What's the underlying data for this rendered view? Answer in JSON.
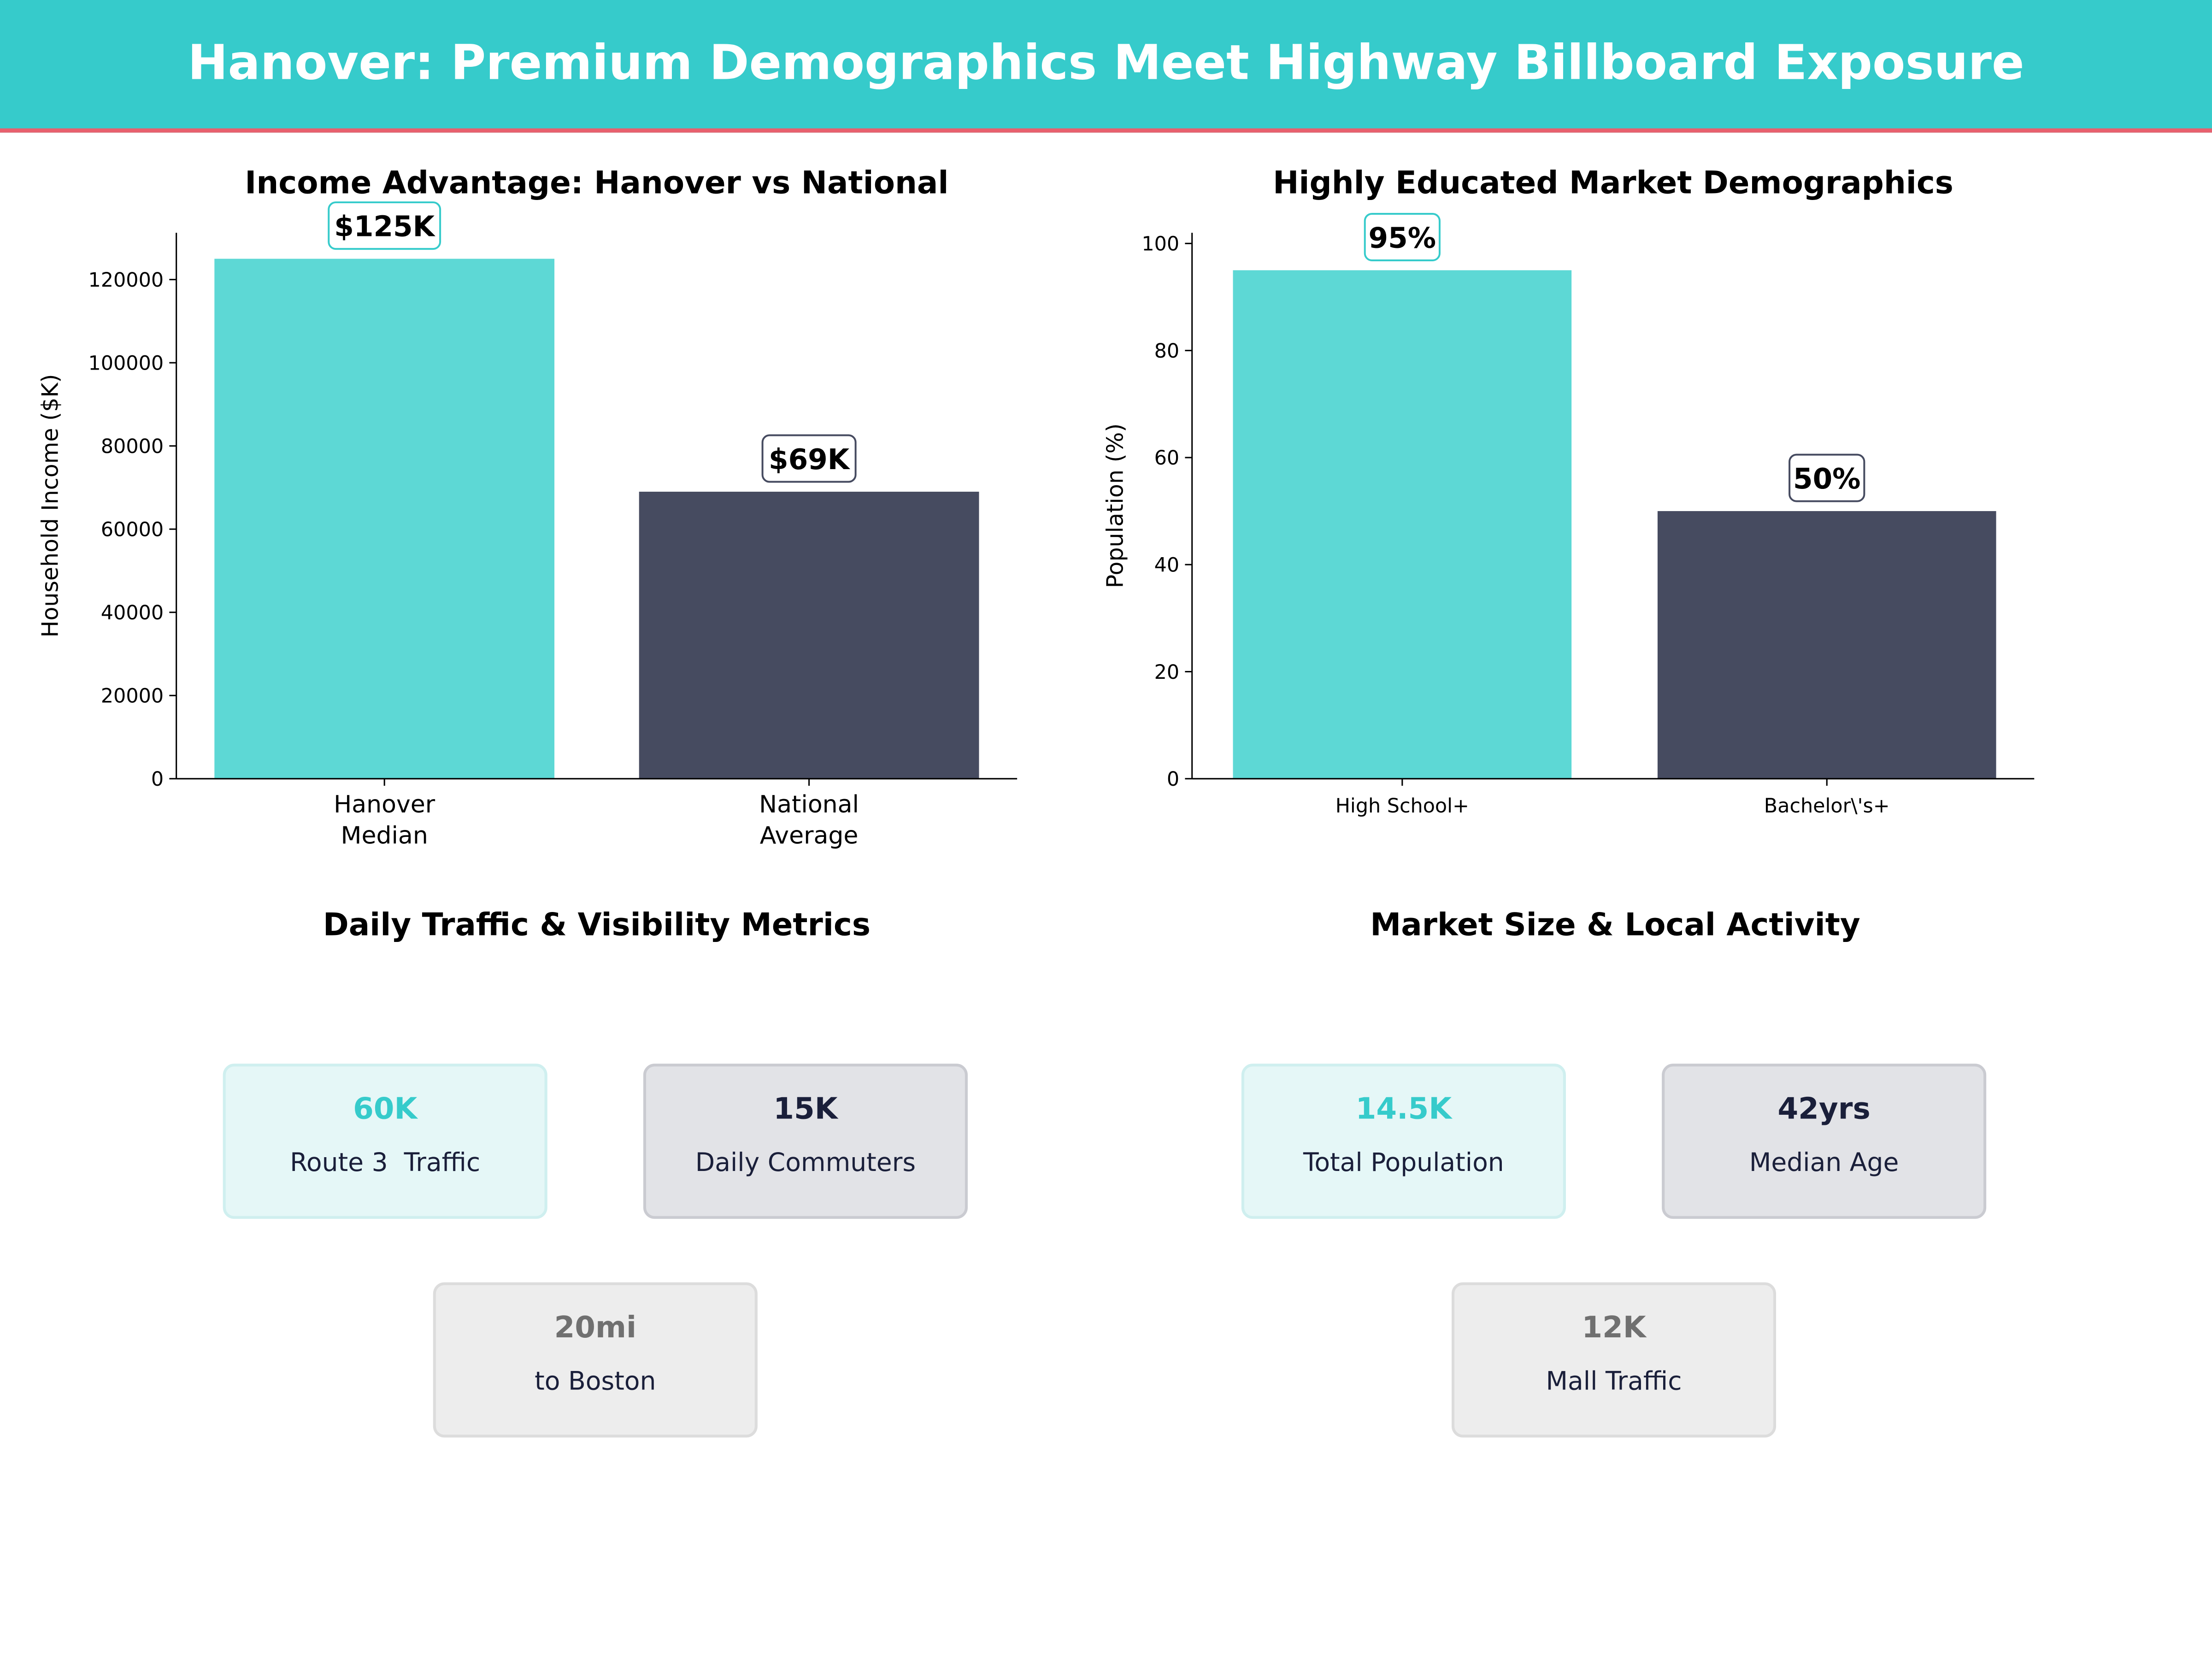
{
  "title": "Hanover: Premium Demographics Meet Highway Billboard Exposure",
  "colors": {
    "accent": "#36CBCB",
    "bar_primary": "#5DD8D5",
    "bar_secondary": "#464B60",
    "header_rule": "#E8606E"
  },
  "chart_data": [
    {
      "type": "bar",
      "title": "Income Advantage: Hanover vs National",
      "ylabel": "Household Income ($K)",
      "xlabel": "",
      "categories": [
        "Hanover\nMedian",
        "National\nAverage"
      ],
      "values": [
        125000,
        69000
      ],
      "data_labels": [
        "$125K",
        "$69K"
      ],
      "yticks": [
        0,
        20000,
        40000,
        60000,
        80000,
        100000,
        120000
      ],
      "ylim": [
        0,
        131250
      ],
      "grid": false
    },
    {
      "type": "bar",
      "title": "Highly Educated Market Demographics",
      "ylabel": "Population (%)",
      "xlabel": "",
      "categories": [
        "High School+",
        "Bachelor\\'s+"
      ],
      "values": [
        95,
        50
      ],
      "data_labels": [
        "95%",
        "50%"
      ],
      "yticks": [
        0,
        20,
        40,
        60,
        80,
        100
      ],
      "ylim": [
        0,
        102
      ],
      "grid": false
    }
  ],
  "traffic": {
    "title": "Daily Traffic & Visibility Metrics",
    "cards": [
      {
        "value": "60K",
        "label": "Route 3  Traffic"
      },
      {
        "value": "15K",
        "label": "Daily Commuters"
      },
      {
        "value": "20mi",
        "label": "to Boston"
      }
    ]
  },
  "market": {
    "title": "Market Size & Local Activity",
    "cards": [
      {
        "value": "14.5K",
        "label": "Total Population"
      },
      {
        "value": "42yrs",
        "label": "Median Age"
      },
      {
        "value": "12K",
        "label": "Mall Traffic"
      }
    ]
  }
}
